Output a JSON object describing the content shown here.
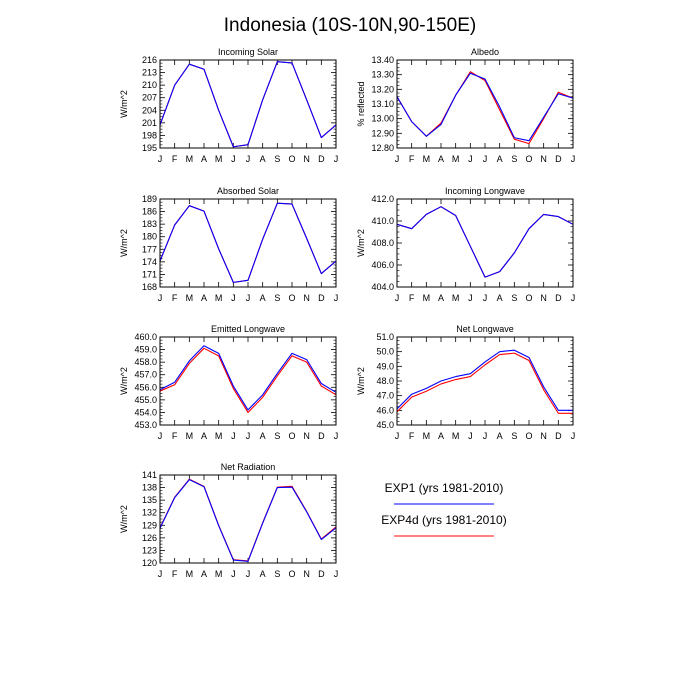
{
  "title": "Indonesia (10S-10N,90-150E)",
  "legend": [
    {
      "label": "EXP1 (yrs 1981-2010)",
      "color": "#0000ff"
    },
    {
      "label": "EXP4d (yrs 1981-2010)",
      "color": "#ff0000"
    }
  ],
  "chart_data": [
    {
      "type": "line",
      "title": "Incoming Solar",
      "ylabel": "W/m^2",
      "categories": [
        "J",
        "F",
        "M",
        "A",
        "M",
        "J",
        "J",
        "A",
        "S",
        "O",
        "N",
        "D",
        "J"
      ],
      "ylim": [
        195,
        216
      ],
      "yticks": [
        "195",
        "198",
        "201",
        "204",
        "207",
        "210",
        "213",
        "216"
      ],
      "series": [
        {
          "name": "EXP1 (yrs 1981-2010)",
          "color": "#0000ff",
          "values": [
            200.5,
            210.0,
            215.0,
            213.8,
            204.0,
            195.3,
            195.8,
            206.5,
            215.6,
            215.3,
            206.5,
            197.5,
            200.5
          ]
        },
        {
          "name": "EXP4d (yrs 1981-2010)",
          "color": "#ff0000",
          "values": [
            200.5,
            210.0,
            215.0,
            213.8,
            204.0,
            195.3,
            195.8,
            206.5,
            215.6,
            215.3,
            206.5,
            197.5,
            200.5
          ]
        }
      ]
    },
    {
      "type": "line",
      "title": "Albedo",
      "ylabel": "% reflected",
      "categories": [
        "J",
        "F",
        "M",
        "A",
        "M",
        "J",
        "J",
        "A",
        "S",
        "O",
        "N",
        "D",
        "J"
      ],
      "ylim": [
        12.8,
        13.4
      ],
      "yticks": [
        "12.80",
        "12.90",
        "13.00",
        "13.10",
        "13.20",
        "13.30",
        "13.40"
      ],
      "series": [
        {
          "name": "EXP1 (yrs 1981-2010)",
          "color": "#0000ff",
          "values": [
            13.15,
            12.98,
            12.88,
            12.96,
            13.16,
            13.31,
            13.27,
            13.08,
            12.87,
            12.85,
            13.01,
            13.17,
            13.14
          ]
        },
        {
          "name": "EXP4d (yrs 1981-2010)",
          "color": "#ff0000",
          "values": [
            13.15,
            12.98,
            12.88,
            12.97,
            13.16,
            13.32,
            13.26,
            13.06,
            12.86,
            12.83,
            13.0,
            13.18,
            13.14
          ]
        }
      ]
    },
    {
      "type": "line",
      "title": "Absorbed Solar",
      "ylabel": "W/m^2",
      "categories": [
        "J",
        "F",
        "M",
        "A",
        "M",
        "J",
        "J",
        "A",
        "S",
        "O",
        "N",
        "D",
        "J"
      ],
      "ylim": [
        168,
        189
      ],
      "yticks": [
        "168",
        "171",
        "174",
        "177",
        "180",
        "183",
        "186",
        "189"
      ],
      "series": [
        {
          "name": "EXP1 (yrs 1981-2010)",
          "color": "#0000ff",
          "values": [
            174.2,
            182.8,
            187.4,
            186.1,
            177.1,
            169.1,
            169.6,
            179.4,
            188.0,
            187.8,
            179.6,
            171.2,
            174.2
          ]
        },
        {
          "name": "EXP4d (yrs 1981-2010)",
          "color": "#ff0000",
          "values": [
            174.2,
            182.8,
            187.4,
            186.1,
            177.1,
            169.1,
            169.6,
            179.4,
            188.0,
            187.8,
            179.6,
            171.2,
            174.2
          ]
        }
      ]
    },
    {
      "type": "line",
      "title": "Incoming Longwave",
      "ylabel": "W/m^2",
      "categories": [
        "J",
        "F",
        "M",
        "A",
        "M",
        "J",
        "J",
        "A",
        "S",
        "O",
        "N",
        "D",
        "J"
      ],
      "ylim": [
        404,
        412
      ],
      "yticks": [
        "404.0",
        "406.0",
        "408.0",
        "410.0",
        "412.0"
      ],
      "series": [
        {
          "name": "EXP1 (yrs 1981-2010)",
          "color": "#0000ff",
          "values": [
            409.7,
            409.3,
            410.6,
            411.3,
            410.5,
            407.7,
            404.9,
            405.4,
            407.1,
            409.3,
            410.6,
            410.4,
            409.7
          ]
        },
        {
          "name": "EXP4d (yrs 1981-2010)",
          "color": "#ff0000",
          "values": [
            409.7,
            409.3,
            410.6,
            411.3,
            410.5,
            407.7,
            404.9,
            405.4,
            407.1,
            409.3,
            410.6,
            410.4,
            409.7
          ]
        }
      ]
    },
    {
      "type": "line",
      "title": "Emitted Longwave",
      "ylabel": "W/m^2",
      "categories": [
        "J",
        "F",
        "M",
        "A",
        "M",
        "J",
        "J",
        "A",
        "S",
        "O",
        "N",
        "D",
        "J"
      ],
      "ylim": [
        453,
        460
      ],
      "yticks": [
        "453.0",
        "454.0",
        "455.0",
        "456.0",
        "457.0",
        "458.0",
        "459.0",
        "460.0"
      ],
      "series": [
        {
          "name": "EXP1 (yrs 1981-2010)",
          "color": "#0000ff",
          "values": [
            455.8,
            456.4,
            458.1,
            459.3,
            458.7,
            456.1,
            454.2,
            455.4,
            457.1,
            458.7,
            458.2,
            456.3,
            455.6
          ]
        },
        {
          "name": "EXP4d (yrs 1981-2010)",
          "color": "#ff0000",
          "values": [
            455.7,
            456.2,
            457.9,
            459.1,
            458.5,
            455.9,
            454.0,
            455.2,
            456.9,
            458.5,
            458.0,
            456.1,
            455.4
          ]
        }
      ]
    },
    {
      "type": "line",
      "title": "Net Longwave",
      "ylabel": "W/m^2",
      "categories": [
        "J",
        "F",
        "M",
        "A",
        "M",
        "J",
        "J",
        "A",
        "S",
        "O",
        "N",
        "D",
        "J"
      ],
      "ylim": [
        45,
        51
      ],
      "yticks": [
        "45.0",
        "46.0",
        "47.0",
        "48.0",
        "49.0",
        "50.0",
        "51.0"
      ],
      "series": [
        {
          "name": "EXP1 (yrs 1981-2010)",
          "color": "#0000ff",
          "values": [
            46.1,
            47.1,
            47.5,
            48.0,
            48.3,
            48.5,
            49.3,
            50.0,
            50.1,
            49.6,
            47.6,
            46.0,
            46.0
          ]
        },
        {
          "name": "EXP4d (yrs 1981-2010)",
          "color": "#ff0000",
          "values": [
            45.9,
            46.9,
            47.3,
            47.8,
            48.1,
            48.3,
            49.1,
            49.8,
            49.9,
            49.4,
            47.4,
            45.8,
            45.8
          ]
        }
      ]
    },
    {
      "type": "line",
      "title": "Net Radiation",
      "ylabel": "W/m^2",
      "categories": [
        "J",
        "F",
        "M",
        "A",
        "M",
        "J",
        "J",
        "A",
        "S",
        "O",
        "N",
        "D",
        "J"
      ],
      "ylim": [
        120,
        141
      ],
      "yticks": [
        "120",
        "123",
        "126",
        "129",
        "132",
        "135",
        "138",
        "141"
      ],
      "series": [
        {
          "name": "EXP1 (yrs 1981-2010)",
          "color": "#0000ff",
          "values": [
            128.3,
            135.6,
            139.9,
            138.2,
            128.9,
            120.7,
            120.4,
            129.5,
            138.0,
            138.1,
            132.2,
            125.6,
            128.4
          ]
        },
        {
          "name": "EXP4d (yrs 1981-2010)",
          "color": "#ff0000",
          "values": [
            128.4,
            135.7,
            140.0,
            138.3,
            129.0,
            120.8,
            120.5,
            129.6,
            138.1,
            138.3,
            132.3,
            125.7,
            128.6
          ]
        }
      ]
    }
  ]
}
